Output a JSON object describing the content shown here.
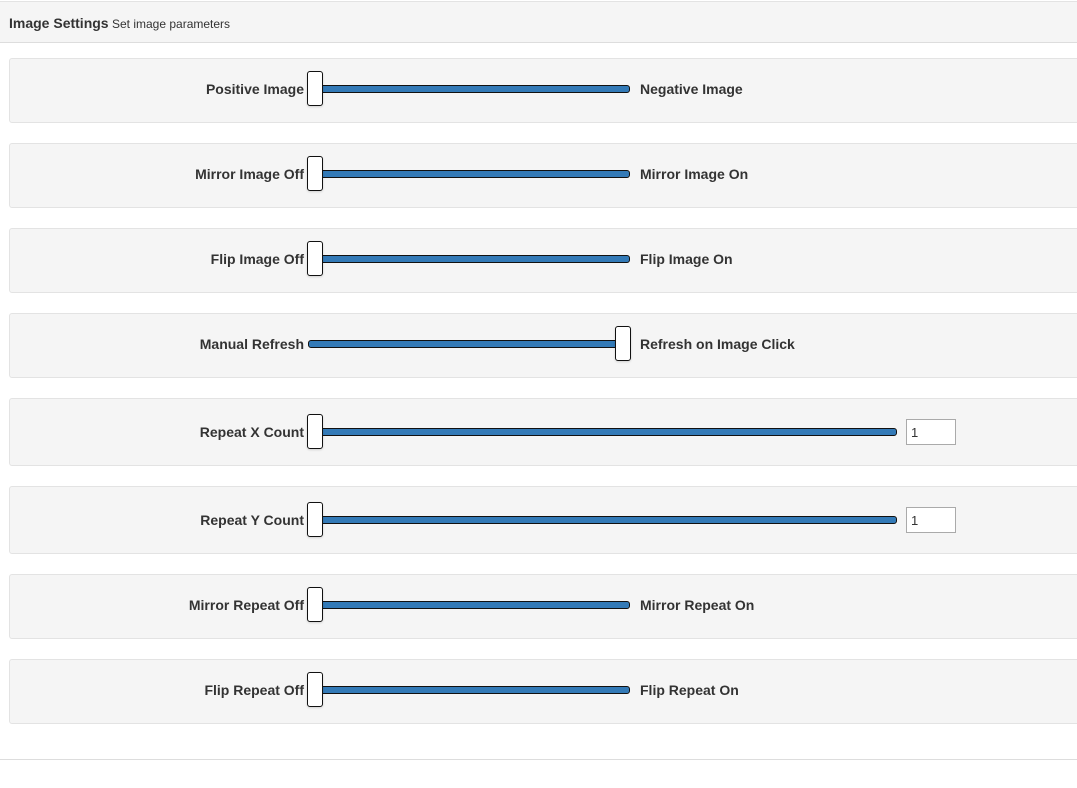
{
  "header": {
    "title": "Image Settings",
    "subtitle": "Set image parameters"
  },
  "settings": [
    {
      "left_label": "Positive Image",
      "right_label": "Negative Image",
      "value": 0
    },
    {
      "left_label": "Mirror Image Off",
      "right_label": "Mirror Image On",
      "value": 0
    },
    {
      "left_label": "Flip Image Off",
      "right_label": "Flip Image On",
      "value": 0
    },
    {
      "left_label": "Manual Refresh",
      "right_label": "Refresh on Image Click",
      "value": 1
    },
    {
      "left_label": "Repeat X Count",
      "count": "1",
      "value": 0
    },
    {
      "left_label": "Repeat Y Count",
      "count": "1",
      "value": 0
    },
    {
      "left_label": "Mirror Repeat Off",
      "right_label": "Mirror Repeat On",
      "value": 0
    },
    {
      "left_label": "Flip Repeat Off",
      "right_label": "Flip Repeat On",
      "value": 0
    }
  ],
  "colors": {
    "track": "#337ab7",
    "panel_bg": "#f5f5f5",
    "border": "#e3e3e3"
  }
}
